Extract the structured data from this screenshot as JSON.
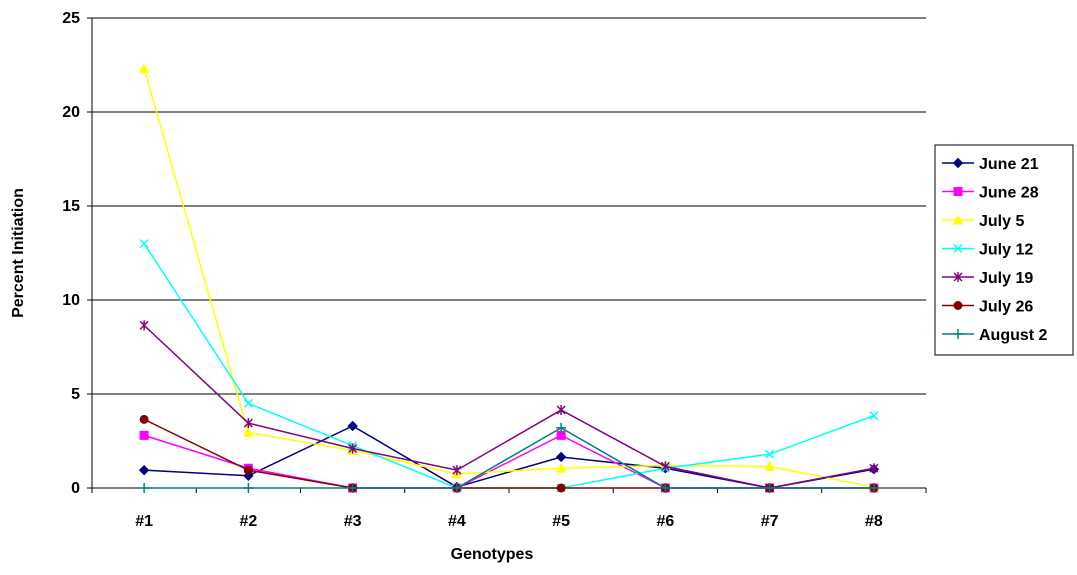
{
  "chart_data": {
    "type": "line",
    "title": "",
    "xlabel": "Genotypes",
    "ylabel": "Percent Initiation",
    "categories": [
      "#1",
      "#2",
      "#3",
      "#4",
      "#5",
      "#6",
      "#7",
      "#8"
    ],
    "ylim": [
      0,
      25
    ],
    "yticks": [
      0,
      5,
      10,
      15,
      20,
      25
    ],
    "grid": "horizontal",
    "legend_position": "right",
    "series": [
      {
        "name": "June 21",
        "color": "#000080",
        "marker": "diamond",
        "values": [
          0.95,
          0.65,
          3.3,
          0.05,
          1.65,
          1.05,
          0.0,
          1.0
        ]
      },
      {
        "name": "June 28",
        "color": "#FF00FF",
        "marker": "square",
        "values": [
          2.8,
          1.05,
          0.0,
          0.0,
          2.8,
          0.0,
          0.0,
          0.0
        ]
      },
      {
        "name": "July 5",
        "color": "#FFFF00",
        "marker": "triangle",
        "values": [
          22.3,
          2.95,
          2.0,
          0.75,
          1.05,
          1.2,
          1.15,
          0.05
        ]
      },
      {
        "name": "July 12",
        "color": "#00FFFF",
        "marker": "x",
        "values": [
          13.0,
          4.5,
          2.25,
          0.0,
          0.0,
          1.05,
          1.8,
          3.85
        ]
      },
      {
        "name": "July 19",
        "color": "#800080",
        "marker": "star",
        "values": [
          8.65,
          3.45,
          2.1,
          0.95,
          4.15,
          1.15,
          0.0,
          1.05
        ]
      },
      {
        "name": "July 26",
        "color": "#800000",
        "marker": "circle",
        "values": [
          3.65,
          0.95,
          0.0,
          0.0,
          0.0,
          0.0,
          0.0,
          0.0
        ]
      },
      {
        "name": "August 2",
        "color": "#008080",
        "marker": "plus",
        "values": [
          0.0,
          0.0,
          0.0,
          0.0,
          3.2,
          0.0,
          0.0,
          0.0
        ]
      }
    ]
  }
}
